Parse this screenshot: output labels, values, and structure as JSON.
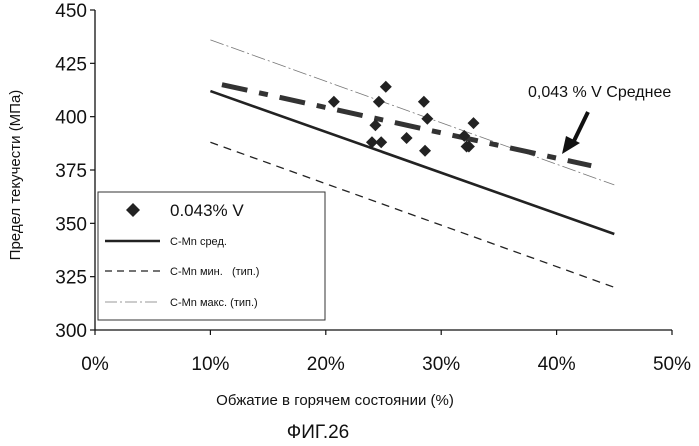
{
  "figure_caption": "ФИГ.26",
  "chart_data": {
    "type": "scatter",
    "title": "",
    "xlabel": "Обжатие в горячем состоянии (%)",
    "ylabel": "Предел текучести (МПа)",
    "xlim": [
      0,
      50
    ],
    "ylim": [
      300,
      450
    ],
    "x_ticks": [
      0,
      10,
      20,
      30,
      40,
      50
    ],
    "x_tick_labels": [
      "0%",
      "10%",
      "20%",
      "30%",
      "40%",
      "50%"
    ],
    "y_ticks": [
      300,
      325,
      350,
      375,
      400,
      425,
      450
    ],
    "y_tick_labels": [
      "300",
      "325",
      "350",
      "375",
      "400",
      "425",
      "450"
    ],
    "grid": false,
    "legend_position": "bottom-left",
    "legend": [
      "0.043% V",
      "C-Mn сред.",
      "C-Mn мин.   (тип.)",
      "C-Mn макс. (тип.)"
    ],
    "series": [
      {
        "name": "0.043% V",
        "kind": "scatter",
        "marker": "diamond",
        "points": [
          [
            20.7,
            407
          ],
          [
            24.6,
            407
          ],
          [
            25.2,
            414
          ],
          [
            24.3,
            396
          ],
          [
            24.0,
            388
          ],
          [
            24.8,
            388
          ],
          [
            27.0,
            390
          ],
          [
            28.5,
            407
          ],
          [
            28.8,
            399
          ],
          [
            28.6,
            384
          ],
          [
            32.0,
            391
          ],
          [
            32.4,
            386
          ],
          [
            32.2,
            386
          ],
          [
            32.8,
            397
          ]
        ]
      },
      {
        "name": "C-Mn сред.",
        "kind": "line",
        "style": "solid",
        "points": [
          [
            10,
            412
          ],
          [
            45,
            345
          ]
        ]
      },
      {
        "name": "C-Mn мин.   (тип.)",
        "kind": "line",
        "style": "dashed",
        "points": [
          [
            10,
            388
          ],
          [
            45,
            320
          ]
        ]
      },
      {
        "name": "C-Mn макс. (тип.)",
        "kind": "line",
        "style": "dash-dot-thin",
        "points": [
          [
            10,
            436
          ],
          [
            45,
            368
          ]
        ]
      },
      {
        "name": "0,043 % V Среднее",
        "kind": "line",
        "style": "dash-dot-thick",
        "points": [
          [
            11,
            415
          ],
          [
            43,
            377
          ]
        ]
      }
    ],
    "annotations": [
      {
        "text": "0,043 % V Среднее",
        "target": [
          41,
          380
        ]
      }
    ]
  }
}
